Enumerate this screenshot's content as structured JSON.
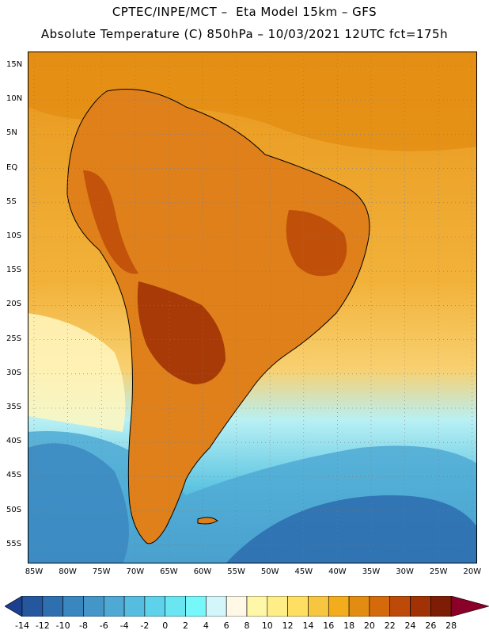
{
  "header": {
    "line1": "CPTEC/INPE/MCT –  Eta Model 15km – GFS",
    "line2": "Absolute Temperature (C) 850hPa – 10/03/2021 12UTC fct=175h"
  },
  "lat_labels": [
    "15N",
    "10N",
    "5N",
    "EQ",
    "5S",
    "10S",
    "15S",
    "20S",
    "25S",
    "30S",
    "35S",
    "40S",
    "45S",
    "50S",
    "55S"
  ],
  "lon_labels": [
    "85W",
    "80W",
    "75W",
    "70W",
    "65W",
    "60W",
    "55W",
    "50W",
    "45W",
    "40W",
    "35W",
    "30W",
    "25W",
    "20W"
  ],
  "colorbar": {
    "labels": [
      "-14",
      "-12",
      "-10",
      "-8",
      "-6",
      "-4",
      "-2",
      "0",
      "2",
      "4",
      "6",
      "8",
      "10",
      "12",
      "14",
      "16",
      "18",
      "20",
      "22",
      "24",
      "26",
      "28"
    ],
    "colors": [
      "#1c3f8f",
      "#25579f",
      "#2e6fb0",
      "#3a86bf",
      "#4596c8",
      "#4fa9d4",
      "#57bde0",
      "#5ed2ea",
      "#6ae6f2",
      "#76f8fb",
      "#d2f6fa",
      "#fff8e6",
      "#fff7a8",
      "#ffee88",
      "#ffdf62",
      "#f7c640",
      "#f2ac1c",
      "#e38c12",
      "#d46a0c",
      "#bd4a08",
      "#a13206",
      "#7d1d06",
      "#8b0028"
    ]
  }
}
